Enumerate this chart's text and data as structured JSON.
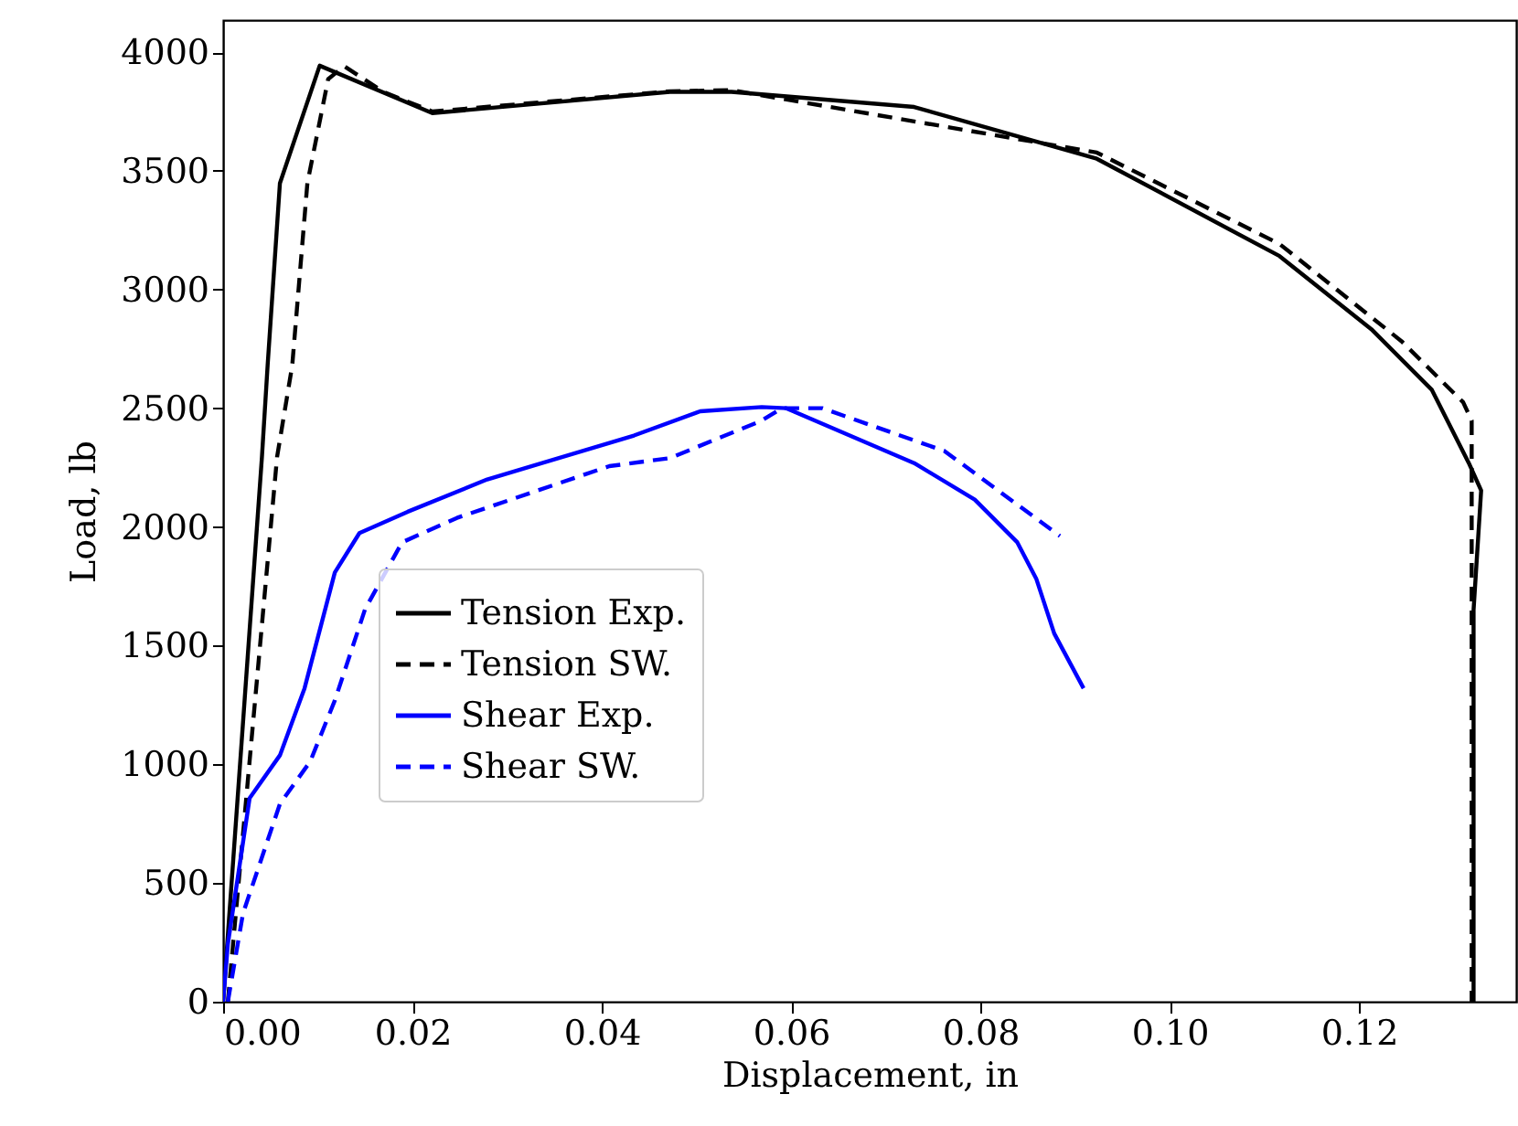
{
  "chart_data": {
    "type": "line",
    "xlabel": "Displacement, in",
    "ylabel": "Load, lb",
    "xlim": [
      0,
      0.1366
    ],
    "ylim": [
      0,
      4135
    ],
    "xticks": [
      {
        "value": 0,
        "label": "0.00"
      },
      {
        "value": 0.02,
        "label": "0.02"
      },
      {
        "value": 0.04,
        "label": "0.04"
      },
      {
        "value": 0.06,
        "label": "0.06"
      },
      {
        "value": 0.08,
        "label": "0.08"
      },
      {
        "value": 0.1,
        "label": "0.10"
      },
      {
        "value": 0.12,
        "label": "0.12"
      }
    ],
    "yticks": [
      0,
      500,
      1000,
      1500,
      2000,
      2500,
      3000,
      3500,
      4000
    ],
    "grid": false,
    "legend": "center left",
    "marker": "none",
    "series": [
      {
        "name": "Tension Exp.",
        "color": "#000000",
        "line_style": "solid",
        "x": [
          0,
          0.0041,
          0.0047,
          0.006,
          0.0102,
          0.0221,
          0.0472,
          0.0537,
          0.073,
          0.0923,
          0.1116,
          0.1213,
          0.1277,
          0.1316,
          0.1329,
          0.1321,
          0.1321
        ],
        "values": [
          0,
          2295,
          2680,
          3448,
          3943,
          3743,
          3833,
          3833,
          3769,
          3551,
          3141,
          2833,
          2577,
          2269,
          2154,
          1650,
          0
        ]
      },
      {
        "name": "Tension SW.",
        "color": "#000000",
        "line_style": "dashed",
        "x": [
          0.0005,
          0.0057,
          0.0073,
          0.0089,
          0.0111,
          0.0128,
          0.0169,
          0.0221,
          0.0472,
          0.0537,
          0.0923,
          0.1116,
          0.1245,
          0.131,
          0.1319,
          0.1319
        ],
        "values": [
          0,
          2295,
          2680,
          3448,
          3887,
          3941,
          3833,
          3750,
          3835,
          3840,
          3577,
          3192,
          2782,
          2525,
          2448,
          0
        ]
      },
      {
        "name": "Shear Exp.",
        "color": "#0000ff",
        "line_style": "solid",
        "x": [
          0,
          0.0005,
          0.0028,
          0.006,
          0.0086,
          0.0118,
          0.0144,
          0.0195,
          0.0279,
          0.0434,
          0.0504,
          0.0569,
          0.0595,
          0.073,
          0.0794,
          0.0839,
          0.0859,
          0.0878,
          0.0909
        ],
        "values": [
          0,
          243,
          858,
          1038,
          1320,
          1808,
          1974,
          2064,
          2200,
          2385,
          2487,
          2505,
          2500,
          2269,
          2115,
          1935,
          1782,
          1551,
          1320
        ]
      },
      {
        "name": "Shear SW.",
        "color": "#0000ff",
        "line_style": "dashed",
        "x": [
          0.0005,
          0.0021,
          0.006,
          0.0092,
          0.0118,
          0.015,
          0.0189,
          0.0247,
          0.0408,
          0.0472,
          0.0569,
          0.059,
          0.0633,
          0.0762,
          0.0884
        ],
        "values": [
          0,
          372,
          833,
          1012,
          1269,
          1654,
          1935,
          2038,
          2256,
          2290,
          2448,
          2500,
          2500,
          2320,
          1962
        ]
      }
    ]
  }
}
